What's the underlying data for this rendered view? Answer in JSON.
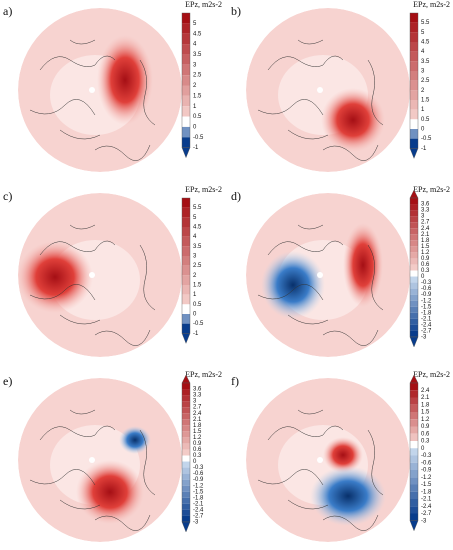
{
  "panels": [
    {
      "label": "a)",
      "title": "EPz, m2s-2",
      "colorbar": [
        5,
        4.5,
        4,
        3.5,
        3,
        2.5,
        2,
        1.5,
        1,
        0.5,
        0,
        -0.5,
        -1
      ]
    },
    {
      "label": "b)",
      "title": "EPz, m2s-2",
      "colorbar": [
        5.5,
        5,
        4.5,
        4,
        3.5,
        3,
        2.5,
        2,
        1.5,
        1,
        0.5,
        0,
        -0.5,
        -1
      ]
    },
    {
      "label": "c)",
      "title": "EPz, m2s-2",
      "colorbar": [
        5.5,
        5,
        4.5,
        4,
        3.5,
        3,
        2.5,
        2,
        1.5,
        1,
        0.5,
        0,
        -0.5,
        -1
      ]
    },
    {
      "label": "d)",
      "title": "EPz, m2s-2",
      "colorbar": [
        3.6,
        3.3,
        3,
        2.7,
        2.4,
        2.1,
        1.8,
        1.5,
        1.2,
        0.9,
        0.6,
        0.3,
        0,
        -0.3,
        -0.6,
        -0.9,
        -1.2,
        -1.5,
        -1.8,
        -2.1,
        -2.4,
        -2.7,
        -3
      ]
    },
    {
      "label": "e)",
      "title": "EPz, m2s-2",
      "colorbar": [
        3.6,
        3.3,
        3,
        2.7,
        2.4,
        2.1,
        1.8,
        1.5,
        1.2,
        0.9,
        0.6,
        0.3,
        0,
        -0.3,
        -0.6,
        -0.9,
        -1.2,
        -1.5,
        -1.8,
        -2.1,
        -2.4,
        -2.7,
        -3
      ]
    },
    {
      "label": "f)",
      "title": "EPz, m2s-2",
      "colorbar": [
        2.4,
        2.1,
        1.8,
        1.5,
        1.2,
        0.9,
        0.6,
        0.3,
        0,
        -0.3,
        -0.6,
        -0.9,
        -1.2,
        -1.5,
        -1.8,
        -2.1,
        -2.4,
        -2.7,
        -3
      ]
    }
  ]
}
